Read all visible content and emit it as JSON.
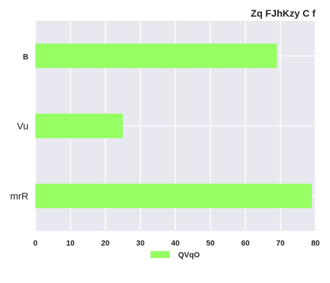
{
  "chart_data": {
    "type": "bar",
    "orientation": "horizontal",
    "title": "Zq FJhKzy C f",
    "categories": [
      "B",
      "Vu",
      "mrR"
    ],
    "series": [
      {
        "name": "QVqO",
        "values": [
          69,
          25,
          79
        ],
        "color": "#96ff64"
      }
    ],
    "xlim": [
      0,
      80
    ],
    "xticks": [
      0,
      10,
      20,
      30,
      40,
      50,
      60,
      70,
      80
    ],
    "grid": true,
    "legend_position": "bottom-center",
    "background_color": "#e8e8f0"
  }
}
